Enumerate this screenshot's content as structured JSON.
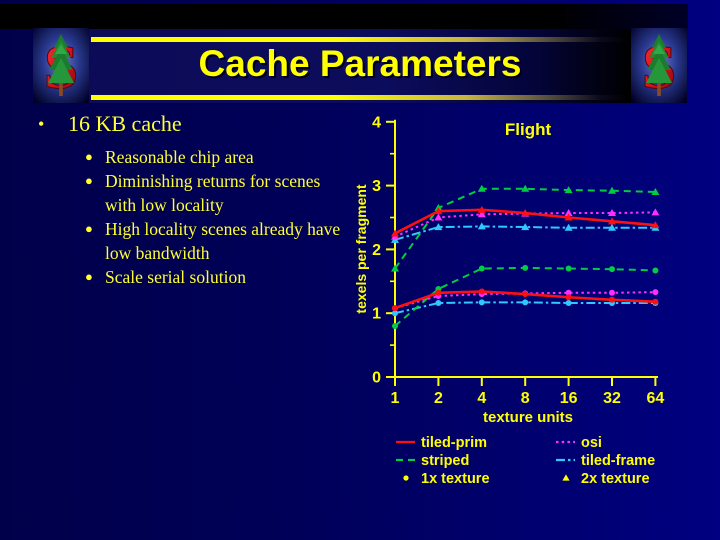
{
  "slide": {
    "title": "Cache Parameters",
    "bullets": {
      "main": "16 KB cache",
      "sub": [
        "Reasonable chip area",
        "Diminishing returns for scenes with low locality",
        "High locality scenes already have low bandwidth",
        "Scale serial solution"
      ]
    }
  },
  "logos": {
    "left": "stanford-tree-logo",
    "right": "stanford-tree-logo"
  },
  "colors": {
    "slide_bg_left": "#00004a",
    "slide_bg_right": "#000080",
    "accent_yellow": "#ffff00",
    "body_text": "#ffff33",
    "series_red": "#ff0f0f",
    "series_green": "#00cc44",
    "series_magenta": "#ff2dff",
    "series_cyan": "#2fc8ff"
  },
  "chart_data": {
    "type": "line",
    "title": "Flight",
    "xlabel": "texture units",
    "ylabel": "texels per fragment",
    "x_scale": "log2",
    "x": [
      1,
      2,
      4,
      8,
      16,
      32,
      64
    ],
    "xtick_labels": [
      "1",
      "2",
      "4",
      "8",
      "16",
      "32",
      "64"
    ],
    "ylim": [
      0,
      4
    ],
    "yticks": [
      0,
      1,
      2,
      3,
      4
    ],
    "grid": false,
    "legend_position": "below",
    "series": [
      {
        "name": "tiled-frame (2x texture)",
        "color": "#2fc8ff",
        "dash": "dashdot",
        "marker": "triangle",
        "values": [
          2.15,
          2.35,
          2.36,
          2.35,
          2.34,
          2.34,
          2.34
        ]
      },
      {
        "name": "osi (2x texture)",
        "color": "#ff2dff",
        "dash": "dotted",
        "marker": "triangle",
        "values": [
          2.2,
          2.5,
          2.55,
          2.56,
          2.57,
          2.57,
          2.58
        ]
      },
      {
        "name": "striped (2x texture)",
        "color": "#00cc44",
        "dash": "dashed",
        "marker": "triangle",
        "values": [
          1.7,
          2.65,
          2.95,
          2.95,
          2.93,
          2.92,
          2.9
        ]
      },
      {
        "name": "tiled-prim (2x texture)",
        "color": "#ff0f0f",
        "dash": "solid",
        "marker": "triangle",
        "values": [
          2.25,
          2.6,
          2.62,
          2.57,
          2.5,
          2.44,
          2.38
        ]
      },
      {
        "name": "tiled-frame (1x texture)",
        "color": "#2fc8ff",
        "dash": "dashdot",
        "marker": "circle",
        "values": [
          1.0,
          1.16,
          1.17,
          1.17,
          1.16,
          1.16,
          1.16
        ]
      },
      {
        "name": "osi (1x texture)",
        "color": "#ff2dff",
        "dash": "dotted",
        "marker": "circle",
        "values": [
          1.08,
          1.27,
          1.3,
          1.31,
          1.32,
          1.32,
          1.33
        ]
      },
      {
        "name": "striped (1x texture)",
        "color": "#00cc44",
        "dash": "dashed",
        "marker": "circle",
        "values": [
          0.8,
          1.38,
          1.7,
          1.71,
          1.7,
          1.69,
          1.67
        ]
      },
      {
        "name": "tiled-prim (1x texture)",
        "color": "#ff0f0f",
        "dash": "solid",
        "marker": "circle",
        "values": [
          1.08,
          1.32,
          1.34,
          1.3,
          1.25,
          1.21,
          1.18
        ]
      }
    ],
    "legend": [
      {
        "label": "tiled-prim",
        "color": "#ff0f0f",
        "dash": "solid"
      },
      {
        "label": "striped",
        "color": "#00cc44",
        "dash": "dashed"
      },
      {
        "label": "1x texture",
        "color": "#ffff00",
        "marker": "circle"
      },
      {
        "label": "osi",
        "color": "#ff2dff",
        "dash": "dotted"
      },
      {
        "label": "tiled-frame",
        "color": "#2fc8ff",
        "dash": "dashdot"
      },
      {
        "label": "2x texture",
        "color": "#ffff00",
        "marker": "triangle"
      }
    ]
  }
}
